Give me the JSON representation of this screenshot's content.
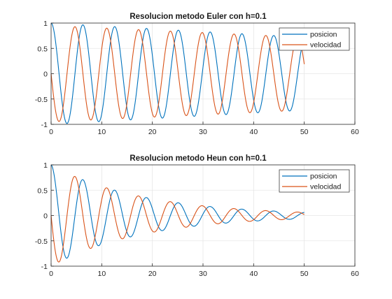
{
  "colors": {
    "posicion": "#0072BD",
    "velocidad": "#D95319",
    "grid": "#e6e6e6",
    "axis": "#262626",
    "background": "#ffffff"
  },
  "chart_data": [
    {
      "type": "line",
      "title": "Resolucion metodo Euler con h=0.1",
      "xlabel": "",
      "ylabel": "",
      "xlim": [
        0,
        60
      ],
      "ylim": [
        -1,
        1
      ],
      "xticks": [
        0,
        10,
        20,
        30,
        40,
        50,
        60
      ],
      "yticks": [
        -1,
        -0.5,
        0,
        0.5,
        1
      ],
      "xtick_labels": [
        "0",
        "10",
        "20",
        "30",
        "40",
        "50",
        "60"
      ],
      "ytick_labels": [
        "-1",
        "-0.5",
        "0",
        "0.5",
        "1"
      ],
      "grid": true,
      "legend_position": "top-right",
      "x_range": [
        0,
        50
      ],
      "step": 0.1,
      "series": [
        {
          "name": "posicion",
          "equation": "cos(t)",
          "amplitude_start": 1.0,
          "amplitude_end": 0.72,
          "color": "#0072BD"
        },
        {
          "name": "velocidad",
          "equation": "-sin(t)",
          "amplitude_start": 0.95,
          "amplitude_end": 0.72,
          "color": "#D95319"
        }
      ]
    },
    {
      "type": "line",
      "title": "Resolucion metodo Heun con h=0.1",
      "xlabel": "",
      "ylabel": "",
      "xlim": [
        0,
        60
      ],
      "ylim": [
        -1,
        1
      ],
      "xticks": [
        0,
        10,
        20,
        30,
        40,
        50,
        60
      ],
      "yticks": [
        -1,
        -0.5,
        0,
        0.5,
        1
      ],
      "xtick_labels": [
        "0",
        "10",
        "20",
        "30",
        "40",
        "50",
        "60"
      ],
      "ytick_labels": [
        "-1",
        "-0.5",
        "0",
        "0.5",
        "1"
      ],
      "grid": true,
      "legend_position": "top-right",
      "x_range": [
        0,
        50
      ],
      "step": 0.1,
      "series": [
        {
          "name": "posicion",
          "equation": "exp(-0.055 t) cos(t)",
          "decay_rate": 0.055,
          "color": "#0072BD"
        },
        {
          "name": "velocidad",
          "equation": "-exp(-0.055 t) sin(t)",
          "decay_rate": 0.055,
          "color": "#D95319"
        }
      ]
    }
  ]
}
